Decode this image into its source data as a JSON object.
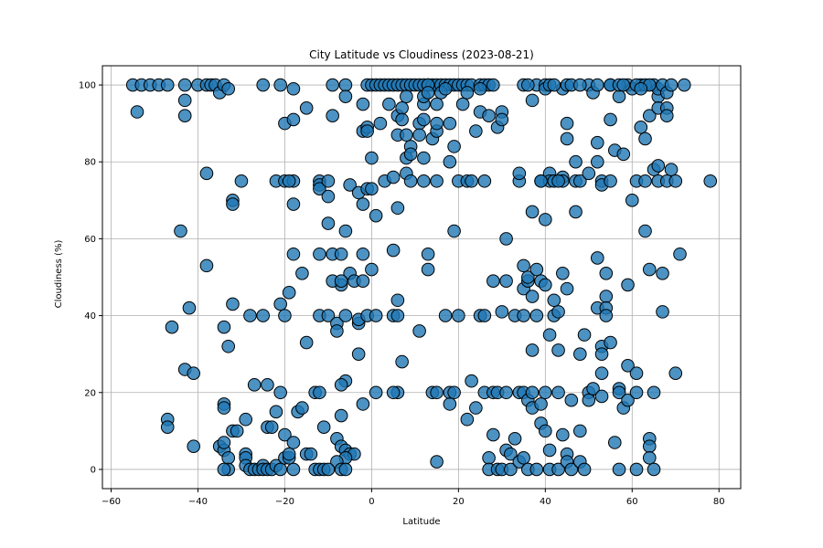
{
  "chart_data": {
    "type": "scatter",
    "title": "City Latitude vs Cloudiness (2023-08-21)",
    "xlabel": "Latitude",
    "ylabel": "Cloudiness (%)",
    "xlim": [
      -62,
      85
    ],
    "ylim": [
      -5,
      105
    ],
    "xticks": [
      -60,
      -40,
      -20,
      0,
      20,
      40,
      60,
      80
    ],
    "yticks": [
      0,
      20,
      40,
      60,
      80,
      100
    ],
    "grid": true,
    "color": "#1f77b4",
    "points": [
      [
        -55,
        100
      ],
      [
        -54,
        93
      ],
      [
        -53,
        100
      ],
      [
        -51,
        100
      ],
      [
        -49,
        100
      ],
      [
        -47,
        100
      ],
      [
        -43,
        100
      ],
      [
        -43,
        96
      ],
      [
        -43,
        92
      ],
      [
        -44,
        62
      ],
      [
        -42,
        42
      ],
      [
        -46,
        37
      ],
      [
        -47,
        13
      ],
      [
        -47,
        11
      ],
      [
        -43,
        26
      ],
      [
        -41,
        25
      ],
      [
        -41,
        6
      ],
      [
        -40,
        100
      ],
      [
        -38,
        100
      ],
      [
        -37,
        100
      ],
      [
        -36,
        100
      ],
      [
        -35,
        98
      ],
      [
        -34,
        100
      ],
      [
        -33,
        99
      ],
      [
        -38,
        77
      ],
      [
        -38,
        53
      ],
      [
        -34,
        37
      ],
      [
        -32,
        43
      ],
      [
        -33,
        32
      ],
      [
        -32,
        70
      ],
      [
        -32,
        69
      ],
      [
        -30,
        75
      ],
      [
        -35,
        6
      ],
      [
        -34,
        5
      ],
      [
        -33,
        3
      ],
      [
        -34,
        7
      ],
      [
        -34,
        17
      ],
      [
        -34,
        16
      ],
      [
        -33,
        0
      ],
      [
        -34,
        0
      ],
      [
        -32,
        10
      ],
      [
        -31,
        10
      ],
      [
        -29,
        13
      ],
      [
        -29,
        4
      ],
      [
        -29,
        3
      ],
      [
        -29,
        1
      ],
      [
        -28,
        0
      ],
      [
        -27,
        0
      ],
      [
        -26,
        0
      ],
      [
        -25,
        1
      ],
      [
        -25,
        0
      ],
      [
        -24,
        0
      ],
      [
        -23,
        0
      ],
      [
        -22,
        1
      ],
      [
        -21,
        0
      ],
      [
        -20,
        3
      ],
      [
        -19,
        3
      ],
      [
        -18,
        0
      ],
      [
        -27,
        22
      ],
      [
        -24,
        22
      ],
      [
        -24,
        11
      ],
      [
        -23,
        11
      ],
      [
        -22,
        15
      ],
      [
        -21,
        20
      ],
      [
        -20,
        9
      ],
      [
        -19,
        4
      ],
      [
        -18,
        7
      ],
      [
        -17,
        15
      ],
      [
        -16,
        16
      ],
      [
        -15,
        4
      ],
      [
        -14,
        4
      ],
      [
        -28,
        40
      ],
      [
        -25,
        40
      ],
      [
        -21,
        43
      ],
      [
        -20,
        40
      ],
      [
        -19,
        46
      ],
      [
        -18,
        56
      ],
      [
        -16,
        51
      ],
      [
        -15,
        33
      ],
      [
        -25,
        100
      ],
      [
        -21,
        100
      ],
      [
        -20,
        90
      ],
      [
        -18,
        91
      ],
      [
        -18,
        99
      ],
      [
        -15,
        94
      ],
      [
        -22,
        75
      ],
      [
        -20,
        75
      ],
      [
        -18,
        75
      ],
      [
        -18,
        69
      ],
      [
        -19,
        75
      ],
      [
        -13,
        0
      ],
      [
        -12,
        0
      ],
      [
        -11,
        0
      ],
      [
        -13,
        20
      ],
      [
        -12,
        20
      ],
      [
        -12,
        40
      ],
      [
        -12,
        56
      ],
      [
        -11,
        11
      ],
      [
        -10,
        40
      ],
      [
        -10,
        64
      ],
      [
        -9,
        56
      ],
      [
        -8,
        38
      ],
      [
        -8,
        36
      ],
      [
        -7,
        48
      ],
      [
        -7,
        56
      ],
      [
        -6,
        62
      ],
      [
        -6,
        23
      ],
      [
        -7,
        22
      ],
      [
        -7,
        14
      ],
      [
        -8,
        8
      ],
      [
        -7,
        6
      ],
      [
        -6,
        5
      ],
      [
        -5,
        4
      ],
      [
        -4,
        4
      ],
      [
        -6,
        3
      ],
      [
        -8,
        2
      ],
      [
        -10,
        0
      ],
      [
        -7,
        0
      ],
      [
        -6,
        0
      ],
      [
        -12,
        75
      ],
      [
        -12,
        74
      ],
      [
        -12,
        73
      ],
      [
        -10,
        75
      ],
      [
        -10,
        71
      ],
      [
        -9,
        92
      ],
      [
        -9,
        100
      ],
      [
        -6,
        100
      ],
      [
        -6,
        97
      ],
      [
        -5,
        74
      ],
      [
        -5,
        51
      ],
      [
        -4,
        49
      ],
      [
        -3,
        38
      ],
      [
        -3,
        39
      ],
      [
        -2,
        49
      ],
      [
        -2,
        56
      ],
      [
        -3,
        72
      ],
      [
        -2,
        88
      ],
      [
        -1,
        89
      ],
      [
        -1,
        88
      ],
      [
        -1,
        73
      ],
      [
        0,
        73
      ],
      [
        -2,
        95
      ],
      [
        -2,
        69
      ],
      [
        -6,
        40
      ],
      [
        -3,
        30
      ],
      [
        -1,
        40
      ],
      [
        0,
        52
      ],
      [
        -2,
        17
      ],
      [
        -9,
        49
      ],
      [
        -7,
        49
      ],
      [
        -1,
        100
      ],
      [
        0,
        100
      ],
      [
        1,
        100
      ],
      [
        2,
        100
      ],
      [
        3,
        100
      ],
      [
        4,
        100
      ],
      [
        5,
        100
      ],
      [
        6,
        100
      ],
      [
        7,
        100
      ],
      [
        8,
        100
      ],
      [
        9,
        100
      ],
      [
        10,
        100
      ],
      [
        11,
        100
      ],
      [
        12,
        100
      ],
      [
        13,
        100
      ],
      [
        14,
        100
      ],
      [
        15,
        100
      ],
      [
        16,
        100
      ],
      [
        17,
        100
      ],
      [
        18,
        100
      ],
      [
        19,
        100
      ],
      [
        20,
        100
      ],
      [
        21,
        100
      ],
      [
        22,
        100
      ],
      [
        23,
        100
      ],
      [
        25,
        100
      ],
      [
        26,
        100
      ],
      [
        27,
        100
      ],
      [
        28,
        100
      ],
      [
        0,
        81
      ],
      [
        1,
        66
      ],
      [
        1,
        40
      ],
      [
        1,
        20
      ],
      [
        2,
        90
      ],
      [
        3,
        75
      ],
      [
        4,
        95
      ],
      [
        5,
        76
      ],
      [
        5,
        57
      ],
      [
        5,
        40
      ],
      [
        6,
        40
      ],
      [
        6,
        20
      ],
      [
        6,
        92
      ],
      [
        7,
        94
      ],
      [
        7,
        91
      ],
      [
        6,
        68
      ],
      [
        6,
        87
      ],
      [
        6,
        44
      ],
      [
        7,
        28
      ],
      [
        8,
        87
      ],
      [
        8,
        81
      ],
      [
        8,
        77
      ],
      [
        8,
        97
      ],
      [
        9,
        84
      ],
      [
        9,
        82
      ],
      [
        9,
        75
      ],
      [
        5,
        20
      ],
      [
        11,
        90
      ],
      [
        11,
        87
      ],
      [
        12,
        91
      ],
      [
        12,
        95
      ],
      [
        12,
        97
      ],
      [
        13,
        100
      ],
      [
        13,
        98
      ],
      [
        13,
        56
      ],
      [
        13,
        52
      ],
      [
        14,
        86
      ],
      [
        15,
        88
      ],
      [
        15,
        90
      ],
      [
        15,
        95
      ],
      [
        15,
        75
      ],
      [
        16,
        98
      ],
      [
        17,
        99
      ],
      [
        18,
        90
      ],
      [
        18,
        80
      ],
      [
        19,
        84
      ],
      [
        19,
        62
      ],
      [
        11,
        36
      ],
      [
        12,
        81
      ],
      [
        12,
        75
      ],
      [
        14,
        20
      ],
      [
        15,
        20
      ],
      [
        15,
        2
      ],
      [
        17,
        40
      ],
      [
        18,
        20
      ],
      [
        18,
        17
      ],
      [
        19,
        20
      ],
      [
        20,
        40
      ],
      [
        20,
        75
      ],
      [
        21,
        95
      ],
      [
        22,
        98
      ],
      [
        22,
        75
      ],
      [
        23,
        75
      ],
      [
        22,
        13
      ],
      [
        23,
        23
      ],
      [
        24,
        16
      ],
      [
        25,
        40
      ],
      [
        24,
        88
      ],
      [
        25,
        93
      ],
      [
        25,
        99
      ],
      [
        26,
        40
      ],
      [
        26,
        75
      ],
      [
        26,
        20
      ],
      [
        27,
        3
      ],
      [
        27,
        0
      ],
      [
        27,
        92
      ],
      [
        28,
        9
      ],
      [
        28,
        20
      ],
      [
        28,
        49
      ],
      [
        29,
        89
      ],
      [
        29,
        20
      ],
      [
        29,
        0
      ],
      [
        30,
        93
      ],
      [
        30,
        91
      ],
      [
        30,
        41
      ],
      [
        30,
        0
      ],
      [
        31,
        60
      ],
      [
        31,
        49
      ],
      [
        31,
        20
      ],
      [
        31,
        5
      ],
      [
        32,
        4
      ],
      [
        32,
        0
      ],
      [
        33,
        40
      ],
      [
        33,
        8
      ],
      [
        34,
        75
      ],
      [
        34,
        77
      ],
      [
        34,
        20
      ],
      [
        34,
        2
      ],
      [
        35,
        53
      ],
      [
        35,
        47
      ],
      [
        35,
        40
      ],
      [
        35,
        20
      ],
      [
        35,
        3
      ],
      [
        36,
        49
      ],
      [
        36,
        50
      ],
      [
        36,
        18
      ],
      [
        36,
        0
      ],
      [
        37,
        96
      ],
      [
        37,
        67
      ],
      [
        37,
        45
      ],
      [
        37,
        31
      ],
      [
        37,
        20
      ],
      [
        37,
        16
      ],
      [
        38,
        52
      ],
      [
        38,
        100
      ],
      [
        38,
        40
      ],
      [
        38,
        0
      ],
      [
        39,
        49
      ],
      [
        39,
        17
      ],
      [
        39,
        12
      ],
      [
        39,
        75
      ],
      [
        40,
        48
      ],
      [
        40,
        65
      ],
      [
        40,
        20
      ],
      [
        40,
        10
      ],
      [
        40,
        100
      ],
      [
        40,
        99
      ],
      [
        41,
        77
      ],
      [
        41,
        75
      ],
      [
        41,
        35
      ],
      [
        41,
        5
      ],
      [
        41,
        0
      ],
      [
        42,
        44
      ],
      [
        42,
        75
      ],
      [
        42,
        40
      ],
      [
        43,
        41
      ],
      [
        43,
        31
      ],
      [
        43,
        20
      ],
      [
        43,
        0
      ],
      [
        44,
        76
      ],
      [
        44,
        75
      ],
      [
        44,
        51
      ],
      [
        44,
        9
      ],
      [
        44,
        99
      ],
      [
        45,
        100
      ],
      [
        45,
        86
      ],
      [
        45,
        90
      ],
      [
        45,
        47
      ],
      [
        45,
        4
      ],
      [
        45,
        2
      ],
      [
        46,
        18
      ],
      [
        46,
        0
      ],
      [
        47,
        80
      ],
      [
        47,
        67
      ],
      [
        47,
        75
      ],
      [
        48,
        75
      ],
      [
        48,
        30
      ],
      [
        48,
        10
      ],
      [
        48,
        2
      ],
      [
        49,
        35
      ],
      [
        49,
        0
      ],
      [
        50,
        77
      ],
      [
        50,
        100
      ],
      [
        50,
        20
      ],
      [
        50,
        18
      ],
      [
        51,
        98
      ],
      [
        51,
        21
      ],
      [
        52,
        85
      ],
      [
        52,
        80
      ],
      [
        52,
        55
      ],
      [
        52,
        42
      ],
      [
        53,
        75
      ],
      [
        53,
        74
      ],
      [
        53,
        32
      ],
      [
        53,
        30
      ],
      [
        53,
        25
      ],
      [
        53,
        19
      ],
      [
        54,
        51
      ],
      [
        54,
        45
      ],
      [
        54,
        42
      ],
      [
        54,
        40
      ],
      [
        55,
        75
      ],
      [
        55,
        91
      ],
      [
        55,
        33
      ],
      [
        55,
        100
      ],
      [
        56,
        83
      ],
      [
        56,
        7
      ],
      [
        57,
        97
      ],
      [
        57,
        21
      ],
      [
        57,
        20
      ],
      [
        57,
        0
      ],
      [
        58,
        82
      ],
      [
        58,
        16
      ],
      [
        59,
        100
      ],
      [
        59,
        48
      ],
      [
        59,
        27
      ],
      [
        59,
        18
      ],
      [
        60,
        70
      ],
      [
        60,
        99
      ],
      [
        61,
        75
      ],
      [
        61,
        25
      ],
      [
        61,
        20
      ],
      [
        61,
        0
      ],
      [
        62,
        89
      ],
      [
        62,
        100
      ],
      [
        63,
        86
      ],
      [
        63,
        75
      ],
      [
        63,
        62
      ],
      [
        64,
        92
      ],
      [
        64,
        8
      ],
      [
        64,
        6
      ],
      [
        64,
        3
      ],
      [
        64,
        52
      ],
      [
        65,
        20
      ],
      [
        65,
        0
      ],
      [
        65,
        100
      ],
      [
        65,
        78
      ],
      [
        66,
        97
      ],
      [
        66,
        99
      ],
      [
        66,
        79
      ],
      [
        66,
        75
      ],
      [
        66,
        94
      ],
      [
        67,
        41
      ],
      [
        67,
        51
      ],
      [
        67,
        100
      ],
      [
        68,
        94
      ],
      [
        68,
        92
      ],
      [
        68,
        98
      ],
      [
        68,
        75
      ],
      [
        69,
        78
      ],
      [
        69,
        100
      ],
      [
        70,
        25
      ],
      [
        70,
        75
      ],
      [
        71,
        56
      ],
      [
        72,
        100
      ],
      [
        78,
        75
      ],
      [
        61,
        100
      ],
      [
        63,
        100
      ],
      [
        64,
        100
      ],
      [
        62,
        99
      ],
      [
        39,
        75
      ],
      [
        43,
        75
      ],
      [
        46,
        100
      ],
      [
        48,
        100
      ],
      [
        52,
        100
      ],
      [
        55,
        100
      ],
      [
        57,
        100
      ],
      [
        58,
        100
      ],
      [
        35,
        100
      ],
      [
        36,
        100
      ],
      [
        41,
        100
      ],
      [
        42,
        100
      ]
    ]
  }
}
